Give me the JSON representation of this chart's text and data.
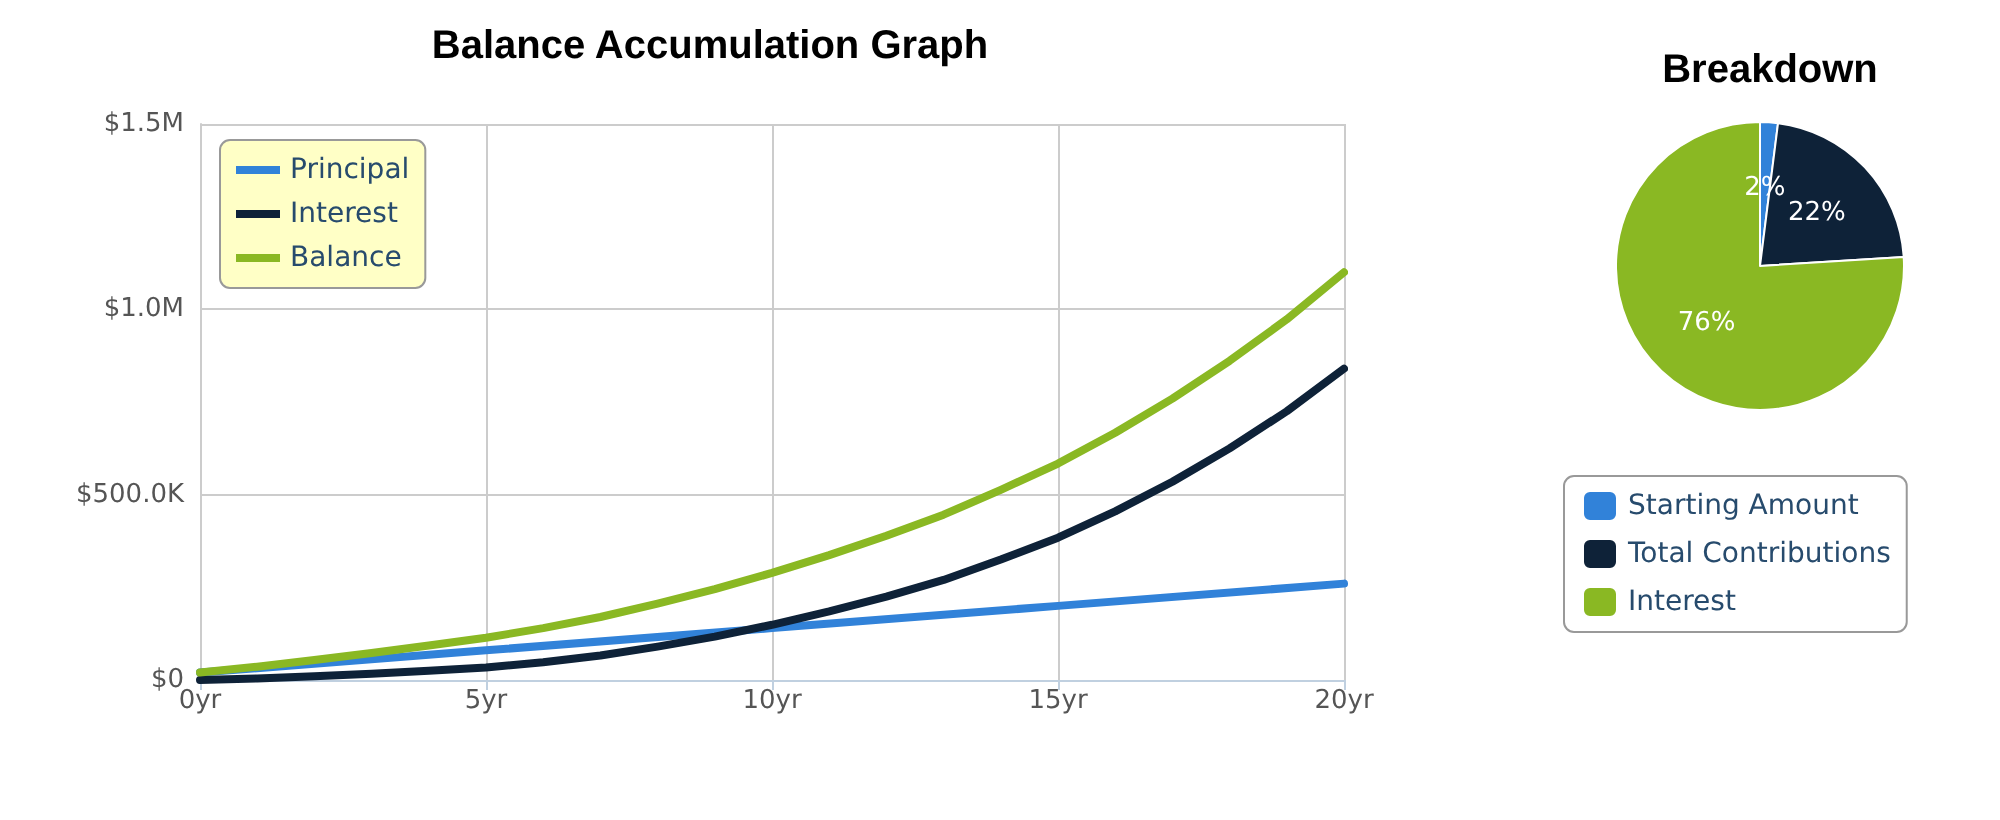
{
  "chart_data": [
    {
      "type": "line",
      "title": "Balance Accumulation Graph",
      "x": [
        0,
        1,
        2,
        3,
        4,
        5,
        6,
        7,
        8,
        9,
        10,
        11,
        12,
        13,
        14,
        15,
        16,
        17,
        18,
        19,
        20
      ],
      "series": [
        {
          "name": "Principal",
          "color": "#3182d9",
          "x": [
            0,
            5,
            10,
            15,
            20
          ],
          "values": [
            20000,
            80000,
            140000,
            200000,
            260000
          ]
        },
        {
          "name": "Interest",
          "color": "#0e2238",
          "values": [
            0,
            4000,
            10000,
            17000,
            25000,
            34000,
            48000,
            66000,
            90000,
            117000,
            149000,
            185000,
            225000,
            270000,
            325000,
            384000,
            455000,
            535000,
            625000,
            725000,
            840000
          ]
        },
        {
          "name": "Balance",
          "color": "#8ab823",
          "values": [
            20000,
            36000,
            54000,
            73000,
            93000,
            114000,
            140000,
            170000,
            206000,
            245000,
            289000,
            337000,
            389000,
            446000,
            513000,
            584000,
            667000,
            759000,
            861000,
            973000,
            1100000
          ]
        }
      ],
      "xlim": [
        0,
        20
      ],
      "xticks": [
        {
          "value": 0,
          "label": "0yr"
        },
        {
          "value": 5,
          "label": "5yr"
        },
        {
          "value": 10,
          "label": "10yr"
        },
        {
          "value": 15,
          "label": "15yr"
        },
        {
          "value": 20,
          "label": "20yr"
        }
      ],
      "ylim": [
        0,
        1500000
      ],
      "yticks": [
        {
          "value": 0,
          "label": "$0"
        },
        {
          "value": 500000,
          "label": "$500.0K"
        },
        {
          "value": 1000000,
          "label": "$1.0M"
        },
        {
          "value": 1500000,
          "label": "$1.5M"
        }
      ],
      "grid": true,
      "legend": "top left",
      "marker": "none",
      "line_style": "solid"
    },
    {
      "type": "pie",
      "title": "Breakdown",
      "categories": [
        "Starting Amount",
        "Total Contributions",
        "Interest"
      ],
      "values": [
        2,
        22,
        76
      ],
      "colors": [
        "#3182d9",
        "#0e2238",
        "#8ab823"
      ],
      "value_labels": [
        "2%",
        "22%",
        "76%"
      ],
      "legend": "bottom"
    }
  ]
}
